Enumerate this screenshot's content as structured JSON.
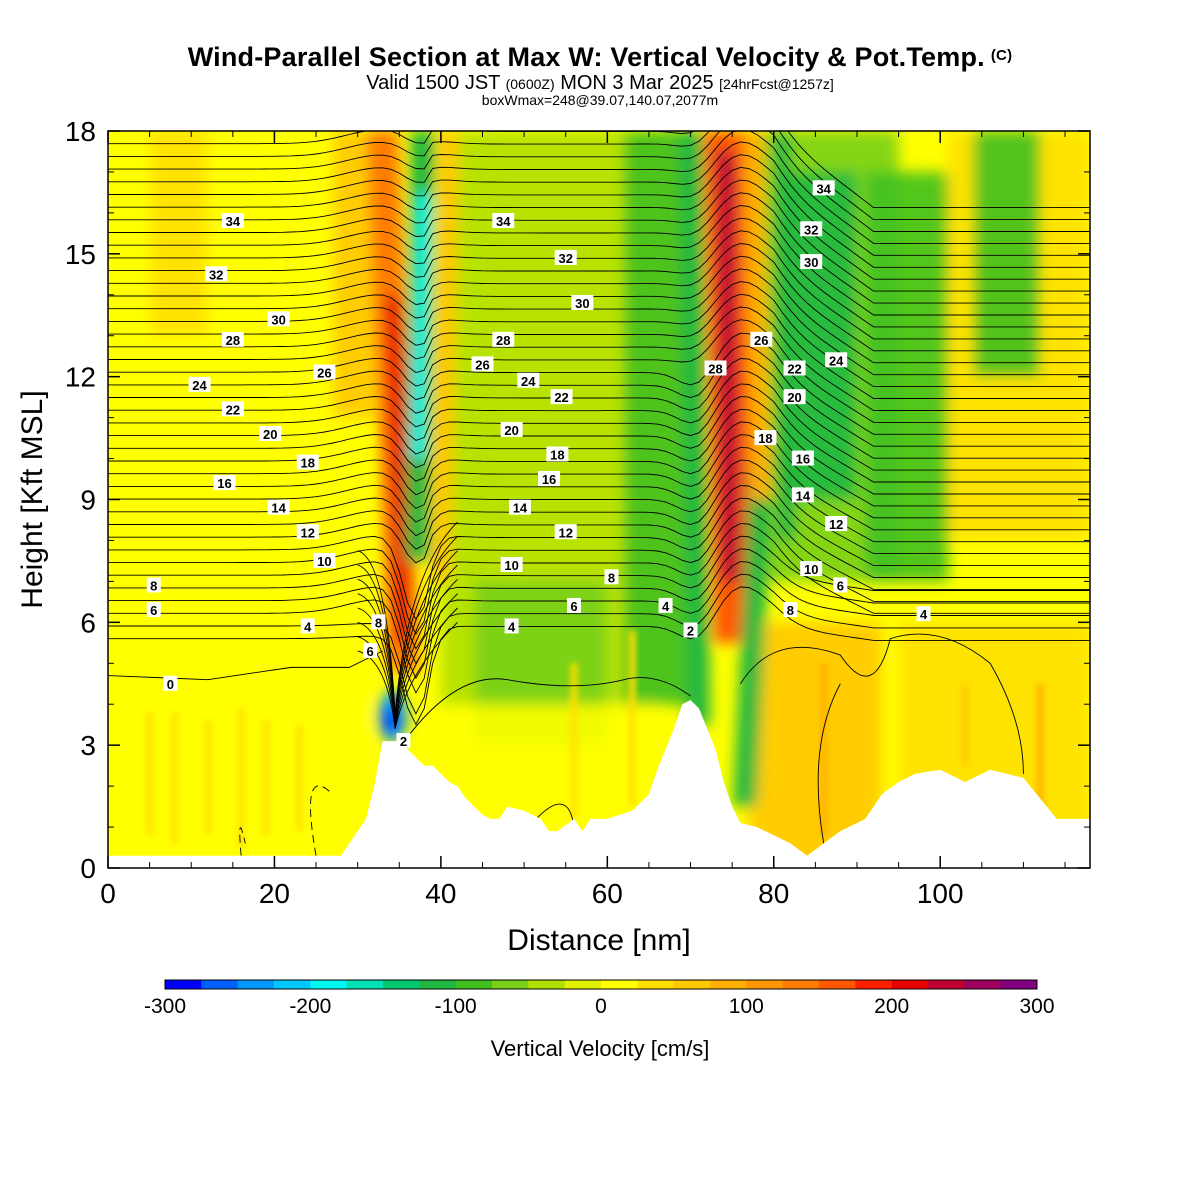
{
  "title": {
    "main": "Wind-Parallel Section at Max W: Vertical Velocity & Pot.Temp.",
    "main_suffix": "(C)",
    "valid_a": "Valid 1500 JST",
    "valid_b": "(0600Z)",
    "valid_c": "MON 3 Mar 2025",
    "valid_d": "[24hrFcst@1257z]",
    "box": "boxWmax=248@39.07,140.07,2077m"
  },
  "chart_data": {
    "type": "heatmap",
    "xlabel": "Distance [nm]",
    "ylabel": "Height [Kft MSL]",
    "xlim": [
      0,
      118
    ],
    "ylim": [
      0,
      18
    ],
    "x_ticks": [
      0,
      20,
      40,
      60,
      80,
      100
    ],
    "y_ticks": [
      0,
      3,
      6,
      9,
      12,
      15,
      18
    ],
    "colorbar": {
      "label": "Vertical Velocity [cm/s]",
      "range": [
        -300,
        300
      ],
      "tick_labels": [
        "-300",
        "-200",
        "-100",
        "0",
        "100",
        "200",
        "300"
      ],
      "colors": [
        "#0000ff",
        "#0060ff",
        "#0098ff",
        "#00c8ff",
        "#00f8f0",
        "#00e0b0",
        "#00c870",
        "#20b840",
        "#40c020",
        "#78d018",
        "#b0e000",
        "#e0f000",
        "#ffff00",
        "#ffe000",
        "#ffc800",
        "#ffb000",
        "#ff9800",
        "#ff7c00",
        "#ff5800",
        "#ff2000",
        "#e80000",
        "#c00030",
        "#a00060",
        "#800080"
      ]
    },
    "terrain_kft": [
      [
        0,
        0.3
      ],
      [
        28,
        0.3
      ],
      [
        29,
        0.6
      ],
      [
        30,
        0.9
      ],
      [
        31,
        1.2
      ],
      [
        32,
        2.0
      ],
      [
        33,
        3.1
      ],
      [
        35,
        3.1
      ],
      [
        36,
        2.9
      ],
      [
        37,
        2.7
      ],
      [
        38,
        2.5
      ],
      [
        39,
        2.5
      ],
      [
        40,
        2.3
      ],
      [
        41,
        2.1
      ],
      [
        42,
        2.0
      ],
      [
        43,
        1.7
      ],
      [
        44,
        1.5
      ],
      [
        45,
        1.3
      ],
      [
        46,
        1.2
      ],
      [
        47,
        1.2
      ],
      [
        48,
        1.5
      ],
      [
        50,
        1.4
      ],
      [
        52,
        1.2
      ],
      [
        53,
        0.9
      ],
      [
        54,
        0.9
      ],
      [
        56,
        1.2
      ],
      [
        57,
        0.9
      ],
      [
        58,
        1.2
      ],
      [
        60,
        1.2
      ],
      [
        63,
        1.4
      ],
      [
        65,
        1.8
      ],
      [
        66,
        2.4
      ],
      [
        67,
        2.9
      ],
      [
        68,
        3.4
      ],
      [
        69,
        4.0
      ],
      [
        70,
        4.1
      ],
      [
        71,
        3.9
      ],
      [
        72,
        3.4
      ],
      [
        73,
        2.9
      ],
      [
        74,
        2.1
      ],
      [
        75,
        1.5
      ],
      [
        76,
        1.1
      ],
      [
        78,
        1.0
      ],
      [
        80,
        0.8
      ],
      [
        82,
        0.6
      ],
      [
        84,
        0.3
      ],
      [
        86,
        0.6
      ],
      [
        88,
        0.9
      ],
      [
        91,
        1.2
      ],
      [
        92,
        1.5
      ],
      [
        93,
        1.8
      ],
      [
        95,
        2.1
      ],
      [
        97,
        2.3
      ],
      [
        100,
        2.4
      ],
      [
        103,
        2.1
      ],
      [
        106,
        2.4
      ],
      [
        110,
        2.2
      ],
      [
        112,
        1.7
      ],
      [
        114,
        1.2
      ],
      [
        118,
        1.2
      ]
    ],
    "vertical_velocity_features": [
      {
        "x_nm": 35,
        "z_kft": [
          4.5,
          18
        ],
        "w_cms": 210
      },
      {
        "x_nm": 37.5,
        "z_kft": [
          8,
          17.5
        ],
        "w_cms": -170
      },
      {
        "x_nm": 34,
        "z_kft": [
          3.2,
          4.6
        ],
        "w_cms": -290
      },
      {
        "x_nm": 74.5,
        "z_kft": [
          5,
          18
        ],
        "w_cms": 230
      },
      {
        "x_nm": 71,
        "z_kft": [
          3,
          18
        ],
        "w_cms": -130
      },
      {
        "x_nm": 84,
        "z_kft": [
          8,
          18
        ],
        "w_cms": -110
      },
      {
        "x_nm": 92,
        "z_kft": [
          7,
          17
        ],
        "w_cms": -90
      }
    ],
    "contour_labels": [
      {
        "text": "34",
        "x": 15,
        "y": 15.8
      },
      {
        "text": "32",
        "x": 13,
        "y": 14.5
      },
      {
        "text": "30",
        "x": 20.5,
        "y": 13.4
      },
      {
        "text": "28",
        "x": 15,
        "y": 12.9
      },
      {
        "text": "26",
        "x": 26,
        "y": 12.1
      },
      {
        "text": "24",
        "x": 11,
        "y": 11.8
      },
      {
        "text": "22",
        "x": 15,
        "y": 11.2
      },
      {
        "text": "20",
        "x": 19.5,
        "y": 10.6
      },
      {
        "text": "18",
        "x": 24,
        "y": 9.9
      },
      {
        "text": "16",
        "x": 14,
        "y": 9.4
      },
      {
        "text": "14",
        "x": 20.5,
        "y": 8.8
      },
      {
        "text": "12",
        "x": 24,
        "y": 8.2
      },
      {
        "text": "10",
        "x": 26,
        "y": 7.5
      },
      {
        "text": "8",
        "x": 5.5,
        "y": 6.9
      },
      {
        "text": "6",
        "x": 5.5,
        "y": 6.3
      },
      {
        "text": "4",
        "x": 24,
        "y": 5.9
      },
      {
        "text": "0",
        "x": 7.5,
        "y": 4.5
      },
      {
        "text": "8",
        "x": 32.5,
        "y": 6.0
      },
      {
        "text": "6",
        "x": 31.5,
        "y": 5.3
      },
      {
        "text": "2",
        "x": 35.5,
        "y": 3.1
      },
      {
        "text": "34",
        "x": 47.5,
        "y": 15.8
      },
      {
        "text": "32",
        "x": 55,
        "y": 14.9
      },
      {
        "text": "30",
        "x": 57,
        "y": 13.8
      },
      {
        "text": "28",
        "x": 47.5,
        "y": 12.9
      },
      {
        "text": "26",
        "x": 45,
        "y": 12.3
      },
      {
        "text": "24",
        "x": 50.5,
        "y": 11.9
      },
      {
        "text": "22",
        "x": 54.5,
        "y": 11.5
      },
      {
        "text": "20",
        "x": 48.5,
        "y": 10.7
      },
      {
        "text": "18",
        "x": 54,
        "y": 10.1
      },
      {
        "text": "16",
        "x": 53,
        "y": 9.5
      },
      {
        "text": "14",
        "x": 49.5,
        "y": 8.8
      },
      {
        "text": "12",
        "x": 55,
        "y": 8.2
      },
      {
        "text": "10",
        "x": 48.5,
        "y": 7.4
      },
      {
        "text": "8",
        "x": 60.5,
        "y": 7.1
      },
      {
        "text": "6",
        "x": 56,
        "y": 6.4
      },
      {
        "text": "4",
        "x": 48.5,
        "y": 5.9
      },
      {
        "text": "4",
        "x": 67,
        "y": 6.4
      },
      {
        "text": "2",
        "x": 70,
        "y": 5.8
      },
      {
        "text": "28",
        "x": 73,
        "y": 12.2
      },
      {
        "text": "26",
        "x": 78.5,
        "y": 12.9
      },
      {
        "text": "34",
        "x": 86,
        "y": 16.6
      },
      {
        "text": "32",
        "x": 84.5,
        "y": 15.6
      },
      {
        "text": "30",
        "x": 84.5,
        "y": 14.8
      },
      {
        "text": "24",
        "x": 87.5,
        "y": 12.4
      },
      {
        "text": "22",
        "x": 82.5,
        "y": 12.2
      },
      {
        "text": "20",
        "x": 82.5,
        "y": 11.5
      },
      {
        "text": "18",
        "x": 79,
        "y": 10.5
      },
      {
        "text": "16",
        "x": 83.5,
        "y": 10.0
      },
      {
        "text": "14",
        "x": 83.5,
        "y": 9.1
      },
      {
        "text": "12",
        "x": 87.5,
        "y": 8.4
      },
      {
        "text": "10",
        "x": 84.5,
        "y": 7.3
      },
      {
        "text": "8",
        "x": 82,
        "y": 6.3
      },
      {
        "text": "6",
        "x": 88,
        "y": 6.9
      },
      {
        "text": "4",
        "x": 98,
        "y": 6.2
      }
    ]
  }
}
